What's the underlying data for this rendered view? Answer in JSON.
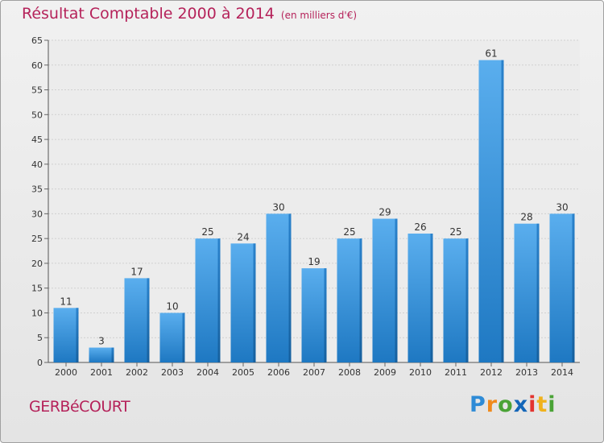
{
  "header": {
    "title": "Résultat Comptable 2000 à 2014",
    "subtitle": "(en milliers d'€)"
  },
  "footer": {
    "commune": "GERBéCOURT",
    "logo_letters": [
      "P",
      "r",
      "o",
      "x",
      "i",
      "t",
      "i"
    ]
  },
  "colors": {
    "title": "#b5225a",
    "bar_top": "#5aaeee",
    "bar_bottom": "#1e78c2",
    "grid": "#d0d0d0",
    "text": "#333333"
  },
  "chart_data": {
    "type": "bar",
    "title": "Résultat Comptable 2000 à 2014",
    "subtitle": "(en milliers d'€)",
    "xlabel": "",
    "ylabel": "",
    "categories": [
      "2000",
      "2001",
      "2002",
      "2003",
      "2004",
      "2005",
      "2006",
      "2007",
      "2008",
      "2009",
      "2010",
      "2011",
      "2012",
      "2013",
      "2014"
    ],
    "values": [
      11,
      3,
      17,
      10,
      25,
      24,
      30,
      19,
      25,
      29,
      26,
      25,
      61,
      28,
      30
    ],
    "ylim": [
      0,
      65
    ],
    "yticks": [
      0,
      5,
      10,
      15,
      20,
      25,
      30,
      35,
      40,
      45,
      50,
      55,
      60,
      65
    ],
    "grid": true,
    "data_labels": true
  }
}
